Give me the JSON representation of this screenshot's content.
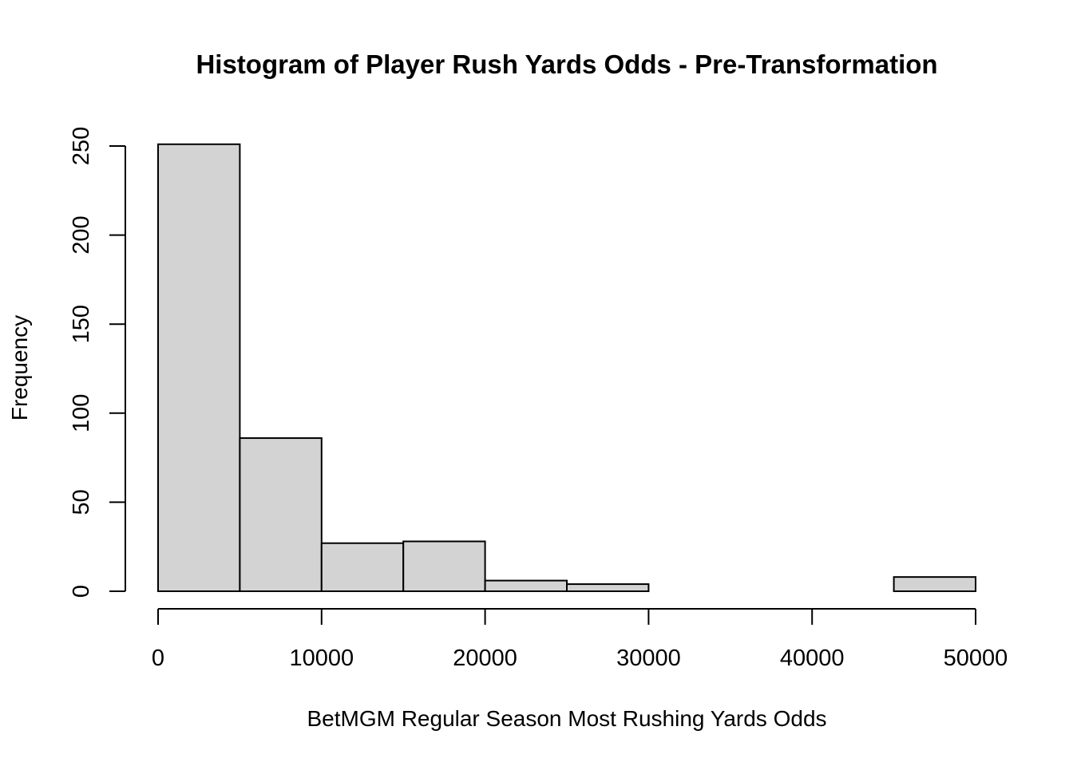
{
  "chart_data": {
    "type": "bar",
    "title": "Histogram of Player Rush Yards Odds - Pre-Transformation",
    "xlabel": "BetMGM Regular Season Most Rushing Yards Odds",
    "ylabel": "Frequency",
    "bins": [
      {
        "start": 0,
        "end": 5000,
        "count": 251
      },
      {
        "start": 5000,
        "end": 10000,
        "count": 86
      },
      {
        "start": 10000,
        "end": 15000,
        "count": 27
      },
      {
        "start": 15000,
        "end": 20000,
        "count": 28
      },
      {
        "start": 20000,
        "end": 25000,
        "count": 6
      },
      {
        "start": 25000,
        "end": 30000,
        "count": 4
      },
      {
        "start": 30000,
        "end": 35000,
        "count": 0
      },
      {
        "start": 35000,
        "end": 40000,
        "count": 0
      },
      {
        "start": 40000,
        "end": 45000,
        "count": 0
      },
      {
        "start": 45000,
        "end": 50000,
        "count": 8
      }
    ],
    "xlim": [
      0,
      50000
    ],
    "ylim": [
      0,
      250
    ],
    "xticks": [
      0,
      10000,
      20000,
      30000,
      40000,
      50000
    ],
    "yticks": [
      0,
      50,
      100,
      150,
      200,
      250
    ],
    "bar_color": "#d3d3d3",
    "grid": false,
    "legend": "none"
  }
}
